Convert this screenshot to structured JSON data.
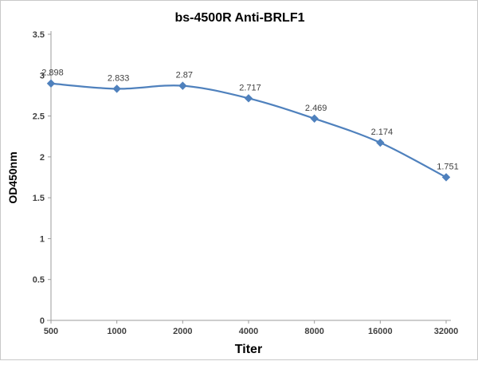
{
  "chart": {
    "title": "bs-4500R Anti-BRLF1",
    "xlabel": "Titer",
    "ylabel": "OD450nm"
  },
  "chart_data": {
    "type": "line",
    "title": "bs-4500R Anti-BRLF1",
    "xlabel": "Titer",
    "ylabel": "OD450nm",
    "categories": [
      "500",
      "1000",
      "2000",
      "4000",
      "8000",
      "16000",
      "32000"
    ],
    "series": [
      {
        "name": "OD450nm",
        "values": [
          2.898,
          2.833,
          2.87,
          2.717,
          2.469,
          2.174,
          1.751
        ],
        "data_labels": [
          "2.898",
          "2.833",
          "2.87",
          "2.717",
          "2.469",
          "2.174",
          "1.751"
        ]
      }
    ],
    "ylim": [
      0,
      3.5
    ],
    "yticks": [
      0,
      0.5,
      1,
      1.5,
      2,
      2.5,
      3,
      3.5
    ],
    "ytick_labels": [
      "0",
      "0.5",
      "1",
      "1.5",
      "2",
      "2.5",
      "3",
      "3.5"
    ],
    "grid": false,
    "legend": "none",
    "line_color": "#4f81bd",
    "marker": "diamond",
    "axis_color": "#9b9b9b"
  }
}
